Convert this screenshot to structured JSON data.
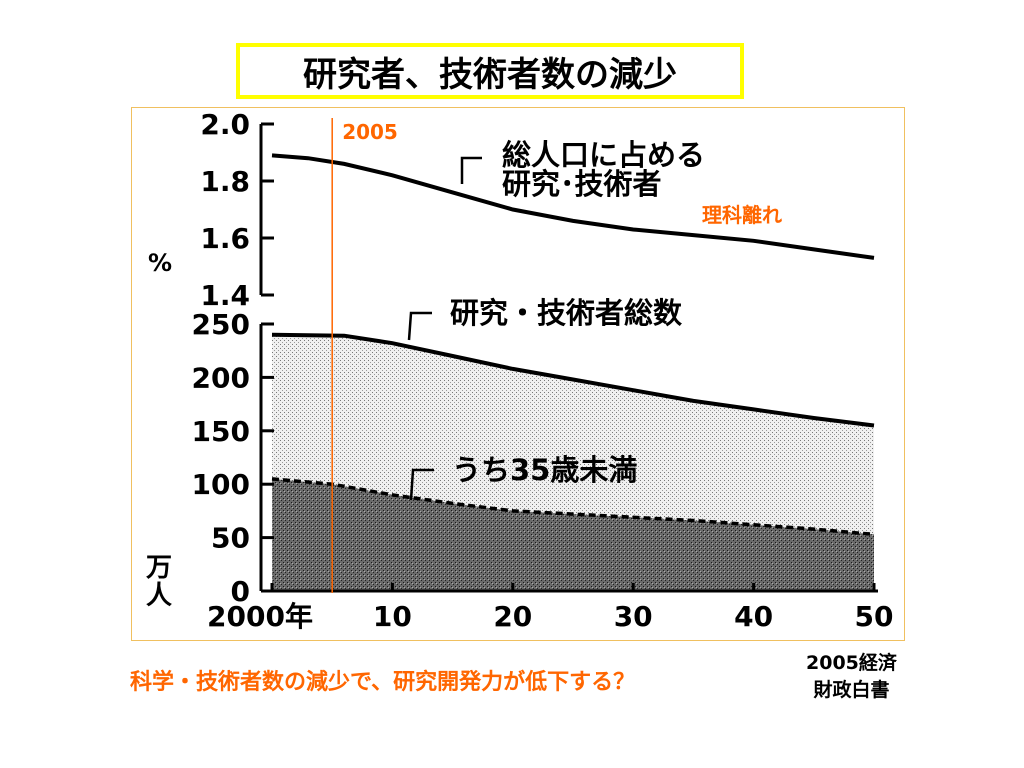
{
  "title": "研究者、技術者数の減少",
  "bottom_caption": "科学・技術者数の減少で、研究開発力が低下する？",
  "source": {
    "line1": "2005経済",
    "line2": "財政白書"
  },
  "colors": {
    "marker": "#ff6600",
    "title_border": "#ffff00",
    "frame": "#f0c060"
  },
  "chart_data": [
    {
      "type": "line",
      "panel": "share",
      "yunit": "%",
      "ylim": [
        1.4,
        2.0
      ],
      "yticks": [
        "2.0",
        "1.8",
        "1.6",
        "1.4"
      ],
      "series": [
        {
          "name": "総人口に占める研究・技術者",
          "x": [
            2000,
            2003,
            2006,
            2010,
            2015,
            2020,
            2025,
            2030,
            2035,
            2040,
            2045,
            2050
          ],
          "values": [
            1.89,
            1.88,
            1.86,
            1.82,
            1.76,
            1.7,
            1.66,
            1.63,
            1.61,
            1.59,
            1.56,
            1.53
          ]
        }
      ],
      "annotations": {
        "marker_year": "2005",
        "note": "理科離れ"
      }
    },
    {
      "type": "area",
      "panel": "count",
      "yunit": "万人",
      "ylim": [
        0,
        250
      ],
      "yticks": [
        "250",
        "200",
        "150",
        "100",
        "50",
        "0"
      ],
      "xlim": [
        2000,
        2050
      ],
      "xticks": [
        "2000年",
        "10",
        "20",
        "30",
        "40",
        "50"
      ],
      "series": [
        {
          "name": "研究・技術者総数",
          "x": [
            2000,
            2006,
            2010,
            2015,
            2020,
            2025,
            2030,
            2035,
            2040,
            2045,
            2050
          ],
          "values": [
            240,
            239,
            232,
            220,
            208,
            198,
            188,
            178,
            170,
            162,
            155
          ]
        },
        {
          "name": "うち35歳未満",
          "x": [
            2000,
            2005,
            2010,
            2015,
            2020,
            2025,
            2030,
            2035,
            2040,
            2045,
            2050
          ],
          "values": [
            105,
            100,
            90,
            82,
            75,
            72,
            69,
            66,
            62,
            58,
            53
          ]
        }
      ]
    }
  ]
}
